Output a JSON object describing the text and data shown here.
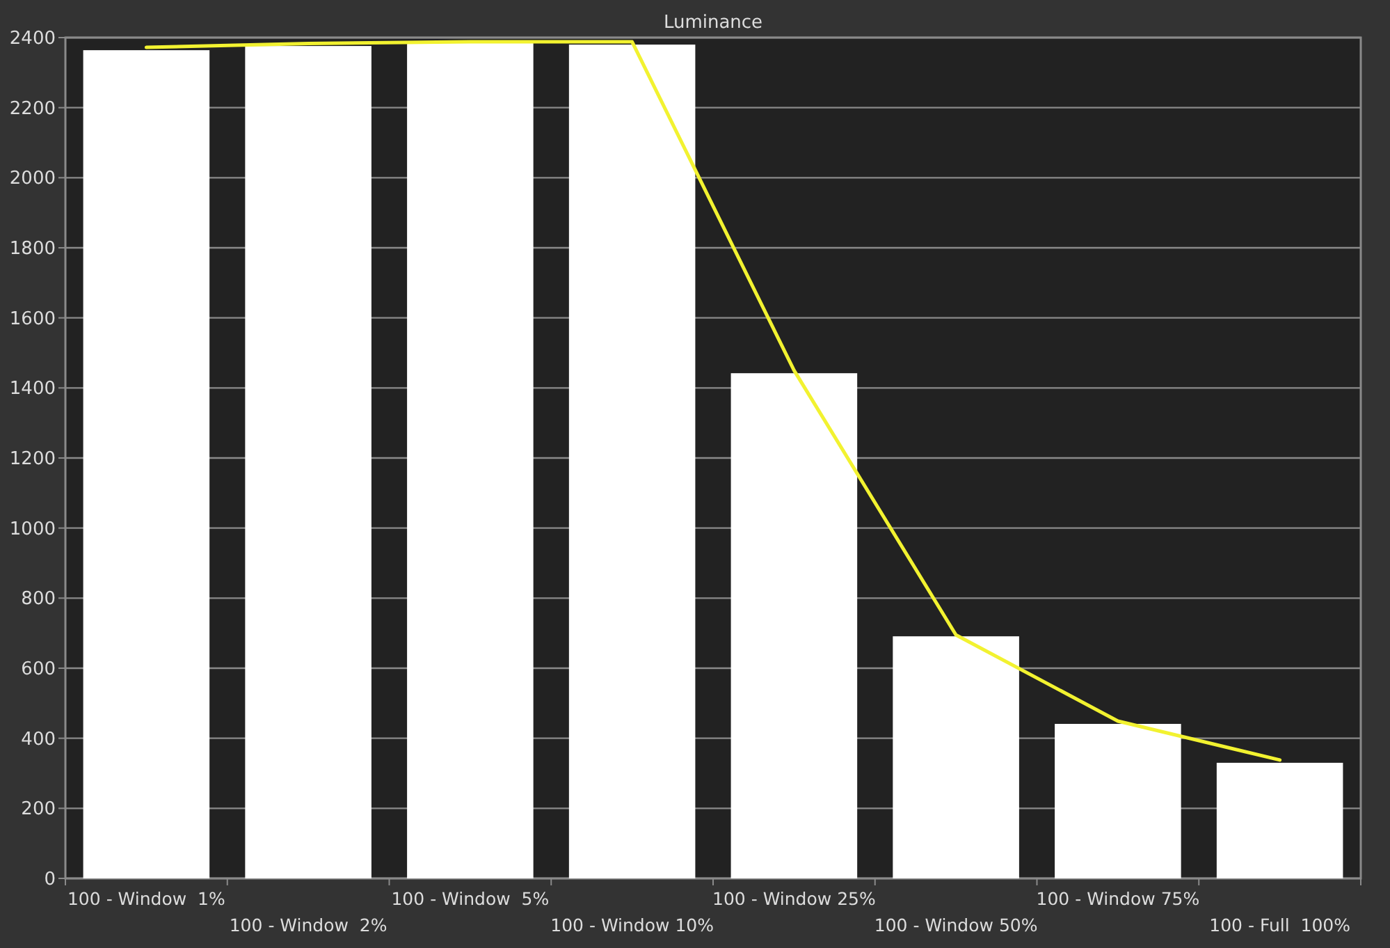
{
  "chart_data": {
    "type": "bar",
    "title": "Luminance",
    "categories": [
      "100 - Window  1%",
      "100 - Window  2%",
      "100 - Window  5%",
      "100 - Window 10%",
      "100 - Window 25%",
      "100 - Window 50%",
      "100 - Window 75%",
      "100 - Full  100%"
    ],
    "series": [
      {
        "color": "#ffffff",
        "values": [
          2364,
          2376,
          2388,
          2380,
          1442,
          691,
          441,
          330
        ]
      },
      {
        "type": "line",
        "color": "#f2f230",
        "values": [
          2372,
          2383,
          2388,
          2388,
          1450,
          695,
          449,
          338
        ]
      }
    ],
    "ylim": [
      0,
      2400
    ],
    "yticks": [
      0,
      200,
      400,
      600,
      800,
      1000,
      1200,
      1400,
      1600,
      1800,
      2000,
      2200,
      2400
    ],
    "grid": "y",
    "marker": "none",
    "line_style": "solid"
  }
}
